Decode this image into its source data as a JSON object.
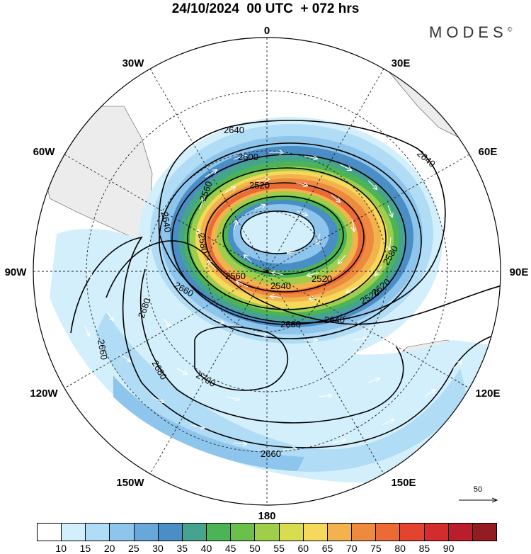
{
  "title": "24/10/2024  00 UTC  + 072 hrs",
  "brand": "MODES",
  "brand_mark": "©",
  "meridian_labels": {
    "m0": "0",
    "m30e": "30E",
    "m60e": "60E",
    "m90e": "90E",
    "m120e": "120E",
    "m150e": "150E",
    "m180": "180",
    "m150w": "150W",
    "m120w": "120W",
    "m90w": "90W",
    "m60w": "60W",
    "m30w": "30W"
  },
  "contour_labels": [
    "2640",
    "2600",
    "2560",
    "2520",
    "2640",
    "2580",
    "2560",
    "2540",
    "2520",
    "2520",
    "2580",
    "2640",
    "2620",
    "2640",
    "2660",
    "2660",
    "2680",
    "2660",
    "2680",
    "2700",
    "2660"
  ],
  "colorbar": {
    "colors": [
      "#ffffff",
      "#d3effc",
      "#b0dcf6",
      "#8ec5ec",
      "#68a7da",
      "#4a8ec5",
      "#45a38e",
      "#4cb457",
      "#6bc04c",
      "#9fce4a",
      "#d7dd4e",
      "#f5d95a",
      "#f2b24d",
      "#ee8a3d",
      "#eb6a35",
      "#e3432f",
      "#d42c2c",
      "#bb1e2a",
      "#951b22"
    ],
    "ticks": [
      "10",
      "15",
      "20",
      "25",
      "30",
      "35",
      "40",
      "45",
      "50",
      "55",
      "60",
      "65",
      "70",
      "75",
      "80",
      "85",
      "90"
    ]
  },
  "vector_scale_label": "50"
}
